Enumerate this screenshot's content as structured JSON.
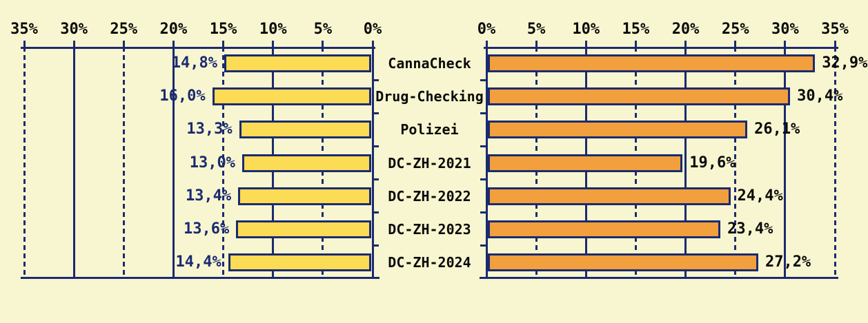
{
  "colors": {
    "background": "#f7f6d0",
    "axis_navy": "#1b2a70",
    "left_bar_fill": "#fcdb55",
    "right_bar_fill": "#f1a03d",
    "left_value_text": "#1b2a70",
    "black_text": "#0a0a0a"
  },
  "chart_data": {
    "type": "bar",
    "layout": "mirrored-horizontal-tornado",
    "grid": true,
    "legend_position": "none",
    "categories": [
      "CannaCheck",
      "Drug-Checking",
      "Polizei",
      "DC-ZH-2021",
      "DC-ZH-2022",
      "DC-ZH-2023",
      "DC-ZH-2024"
    ],
    "series": [
      {
        "name": "left-panel-yellow",
        "side": "left",
        "color": "#fcdb55",
        "values": [
          14.8,
          16.0,
          13.3,
          13.0,
          13.4,
          13.6,
          14.4
        ],
        "value_labels": [
          "14,8%",
          "16,0%",
          "13,3%",
          "13,0%",
          "13,4%",
          "13,6%",
          "14,4%"
        ]
      },
      {
        "name": "right-panel-orange",
        "side": "right",
        "color": "#f1a03d",
        "values": [
          32.9,
          30.4,
          26.1,
          19.6,
          24.4,
          23.4,
          27.2
        ],
        "value_labels": [
          "32,9%",
          "30,4%",
          "26,1%",
          "19,6%",
          "24,4%",
          "23,4%",
          "27,2%"
        ]
      }
    ],
    "axes": {
      "min": 0,
      "max": 35,
      "tick_step": 5,
      "left_axis_tick_labels": [
        "35%",
        "30%",
        "25%",
        "20%",
        "15%",
        "10%",
        "5%",
        "0%"
      ],
      "right_axis_tick_labels": [
        "0%",
        "5%",
        "10%",
        "15%",
        "20%",
        "25%",
        "30%",
        "35%"
      ],
      "solid_gridlines_at": [
        10,
        20,
        30
      ],
      "dashed_gridlines_at": [
        5,
        15,
        25,
        35
      ]
    }
  }
}
